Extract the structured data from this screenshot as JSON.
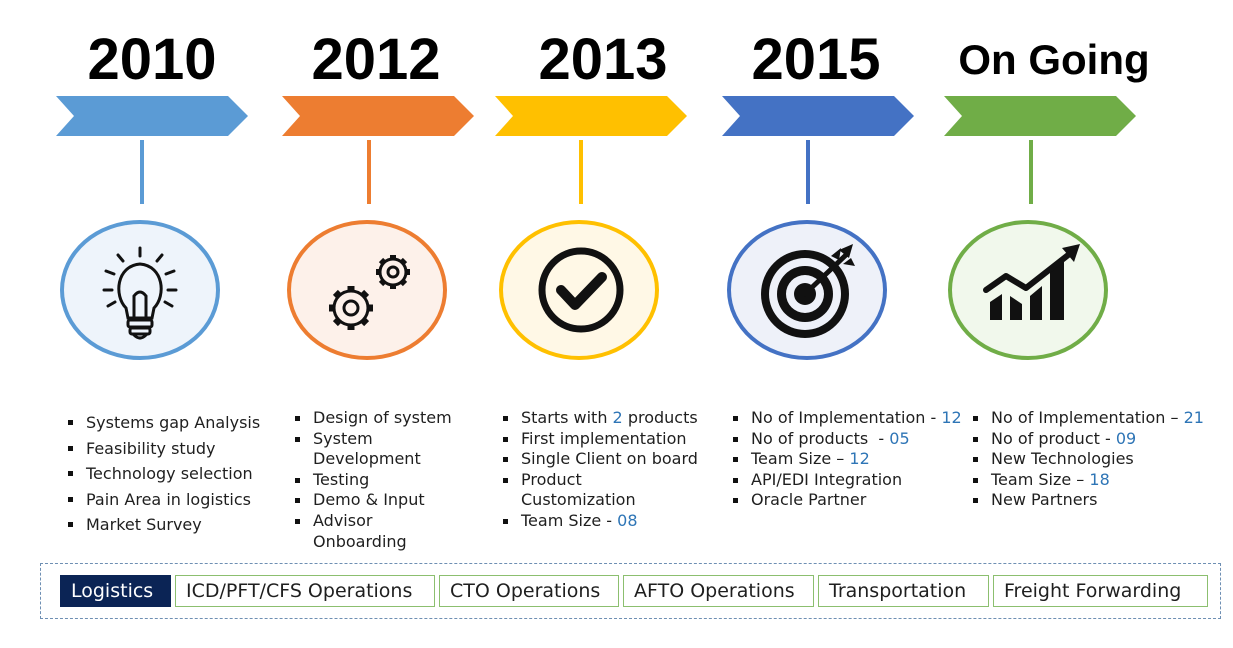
{
  "timeline": [
    {
      "year": "2010",
      "color": "#5b9bd5",
      "circle_fill": "#eef4fb",
      "icon": "lightbulb-icon",
      "items": [
        {
          "text": "Systems gap Analysis",
          "value": ""
        },
        {
          "text": "Feasibility study",
          "value": ""
        },
        {
          "text": "Technology selection",
          "value": ""
        },
        {
          "text": "Pain Area in logistics",
          "value": ""
        },
        {
          "text": "Market Survey",
          "value": ""
        }
      ]
    },
    {
      "year": "2012",
      "color": "#ed7d31",
      "circle_fill": "#fdf1ea",
      "icon": "gears-icon",
      "items": [
        {
          "text": "Design of system",
          "value": ""
        },
        {
          "text": "System Development",
          "value": ""
        },
        {
          "text": "Testing",
          "value": ""
        },
        {
          "text": "Demo & Input",
          "value": ""
        },
        {
          "text": "Advisor Onboarding",
          "value": ""
        }
      ]
    },
    {
      "year": "2013",
      "color": "#ffc000",
      "circle_fill": "#fff8e6",
      "icon": "checkmark-icon",
      "items": [
        {
          "text": "Starts with ",
          "value": "2",
          "suffix": " products"
        },
        {
          "text": "First implementation",
          "value": ""
        },
        {
          "text": "Single Client on board",
          "value": ""
        },
        {
          "text": "Product Customization",
          "value": ""
        },
        {
          "text": "Team Size - ",
          "value": "08"
        }
      ]
    },
    {
      "year": "2015",
      "color": "#4472c4",
      "circle_fill": "#eef1f9",
      "icon": "target-icon",
      "items": [
        {
          "text": "No of Implementation - ",
          "value": "12"
        },
        {
          "text": "No of products  - ",
          "value": "05"
        },
        {
          "text": "Team Size – ",
          "value": "12"
        },
        {
          "text": "API/EDI Integration",
          "value": ""
        },
        {
          "text": "Oracle Partner",
          "value": ""
        }
      ]
    },
    {
      "year": "On Going",
      "color": "#70ad47",
      "circle_fill": "#f1f8ec",
      "icon": "growth-chart-icon",
      "items": [
        {
          "text": "No of Implementation – ",
          "value": "21"
        },
        {
          "text": "No of product - ",
          "value": "09"
        },
        {
          "text": "New Technologies",
          "value": ""
        },
        {
          "text": "Team Size – ",
          "value": "18"
        },
        {
          "text": "New Partners",
          "value": ""
        }
      ]
    }
  ],
  "modules": {
    "active": "Logistics",
    "items": [
      "ICD/PFT/CFS Operations",
      "CTO Operations",
      "AFTO Operations",
      "Transportation",
      "Freight Forwarding"
    ]
  }
}
